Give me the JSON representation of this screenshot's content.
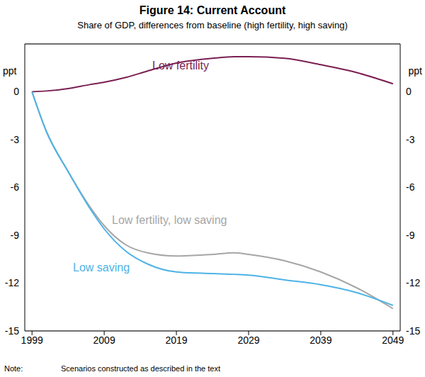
{
  "chart_data": {
    "type": "line",
    "title": "Figure 14: Current Account",
    "subtitle": "Share of GDP, differences from baseline (high fertility, high saving)",
    "y_label": "ppt",
    "note_label": "Note:",
    "note": "Scenarios constructed as described in the text",
    "x": [
      1999,
      2001,
      2004,
      2007,
      2009,
      2012,
      2015,
      2019,
      2024,
      2027,
      2029,
      2034,
      2039,
      2044,
      2049
    ],
    "series": [
      {
        "name": "Low fertility",
        "color": "#7b1f52",
        "values": [
          0,
          0.05,
          0.2,
          0.45,
          0.6,
          0.9,
          1.3,
          1.8,
          2.1,
          2.2,
          2.2,
          2.1,
          1.7,
          1.2,
          0.5
        ]
      },
      {
        "name": "Low fertility, low saving",
        "color": "#a6a6a6",
        "values": [
          0,
          -2.5,
          -5,
          -7.2,
          -8.4,
          -9.6,
          -10.1,
          -10.3,
          -10.2,
          -10.1,
          -10.2,
          -10.6,
          -11.3,
          -12.3,
          -13.6
        ]
      },
      {
        "name": "Low saving",
        "color": "#4db3e6",
        "values": [
          0,
          -2.5,
          -5,
          -7.3,
          -8.6,
          -10,
          -10.8,
          -11.3,
          -11.4,
          -11.45,
          -11.5,
          -11.8,
          -12.1,
          -12.6,
          -13.4
        ]
      }
    ],
    "xlim": [
      1998,
      2050
    ],
    "xticks": [
      1999,
      2009,
      2019,
      2029,
      2039,
      2049
    ],
    "ylim": [
      -15,
      3
    ],
    "yticks": [
      -15,
      -12,
      -9,
      -6,
      -3,
      0
    ],
    "grid": true
  }
}
